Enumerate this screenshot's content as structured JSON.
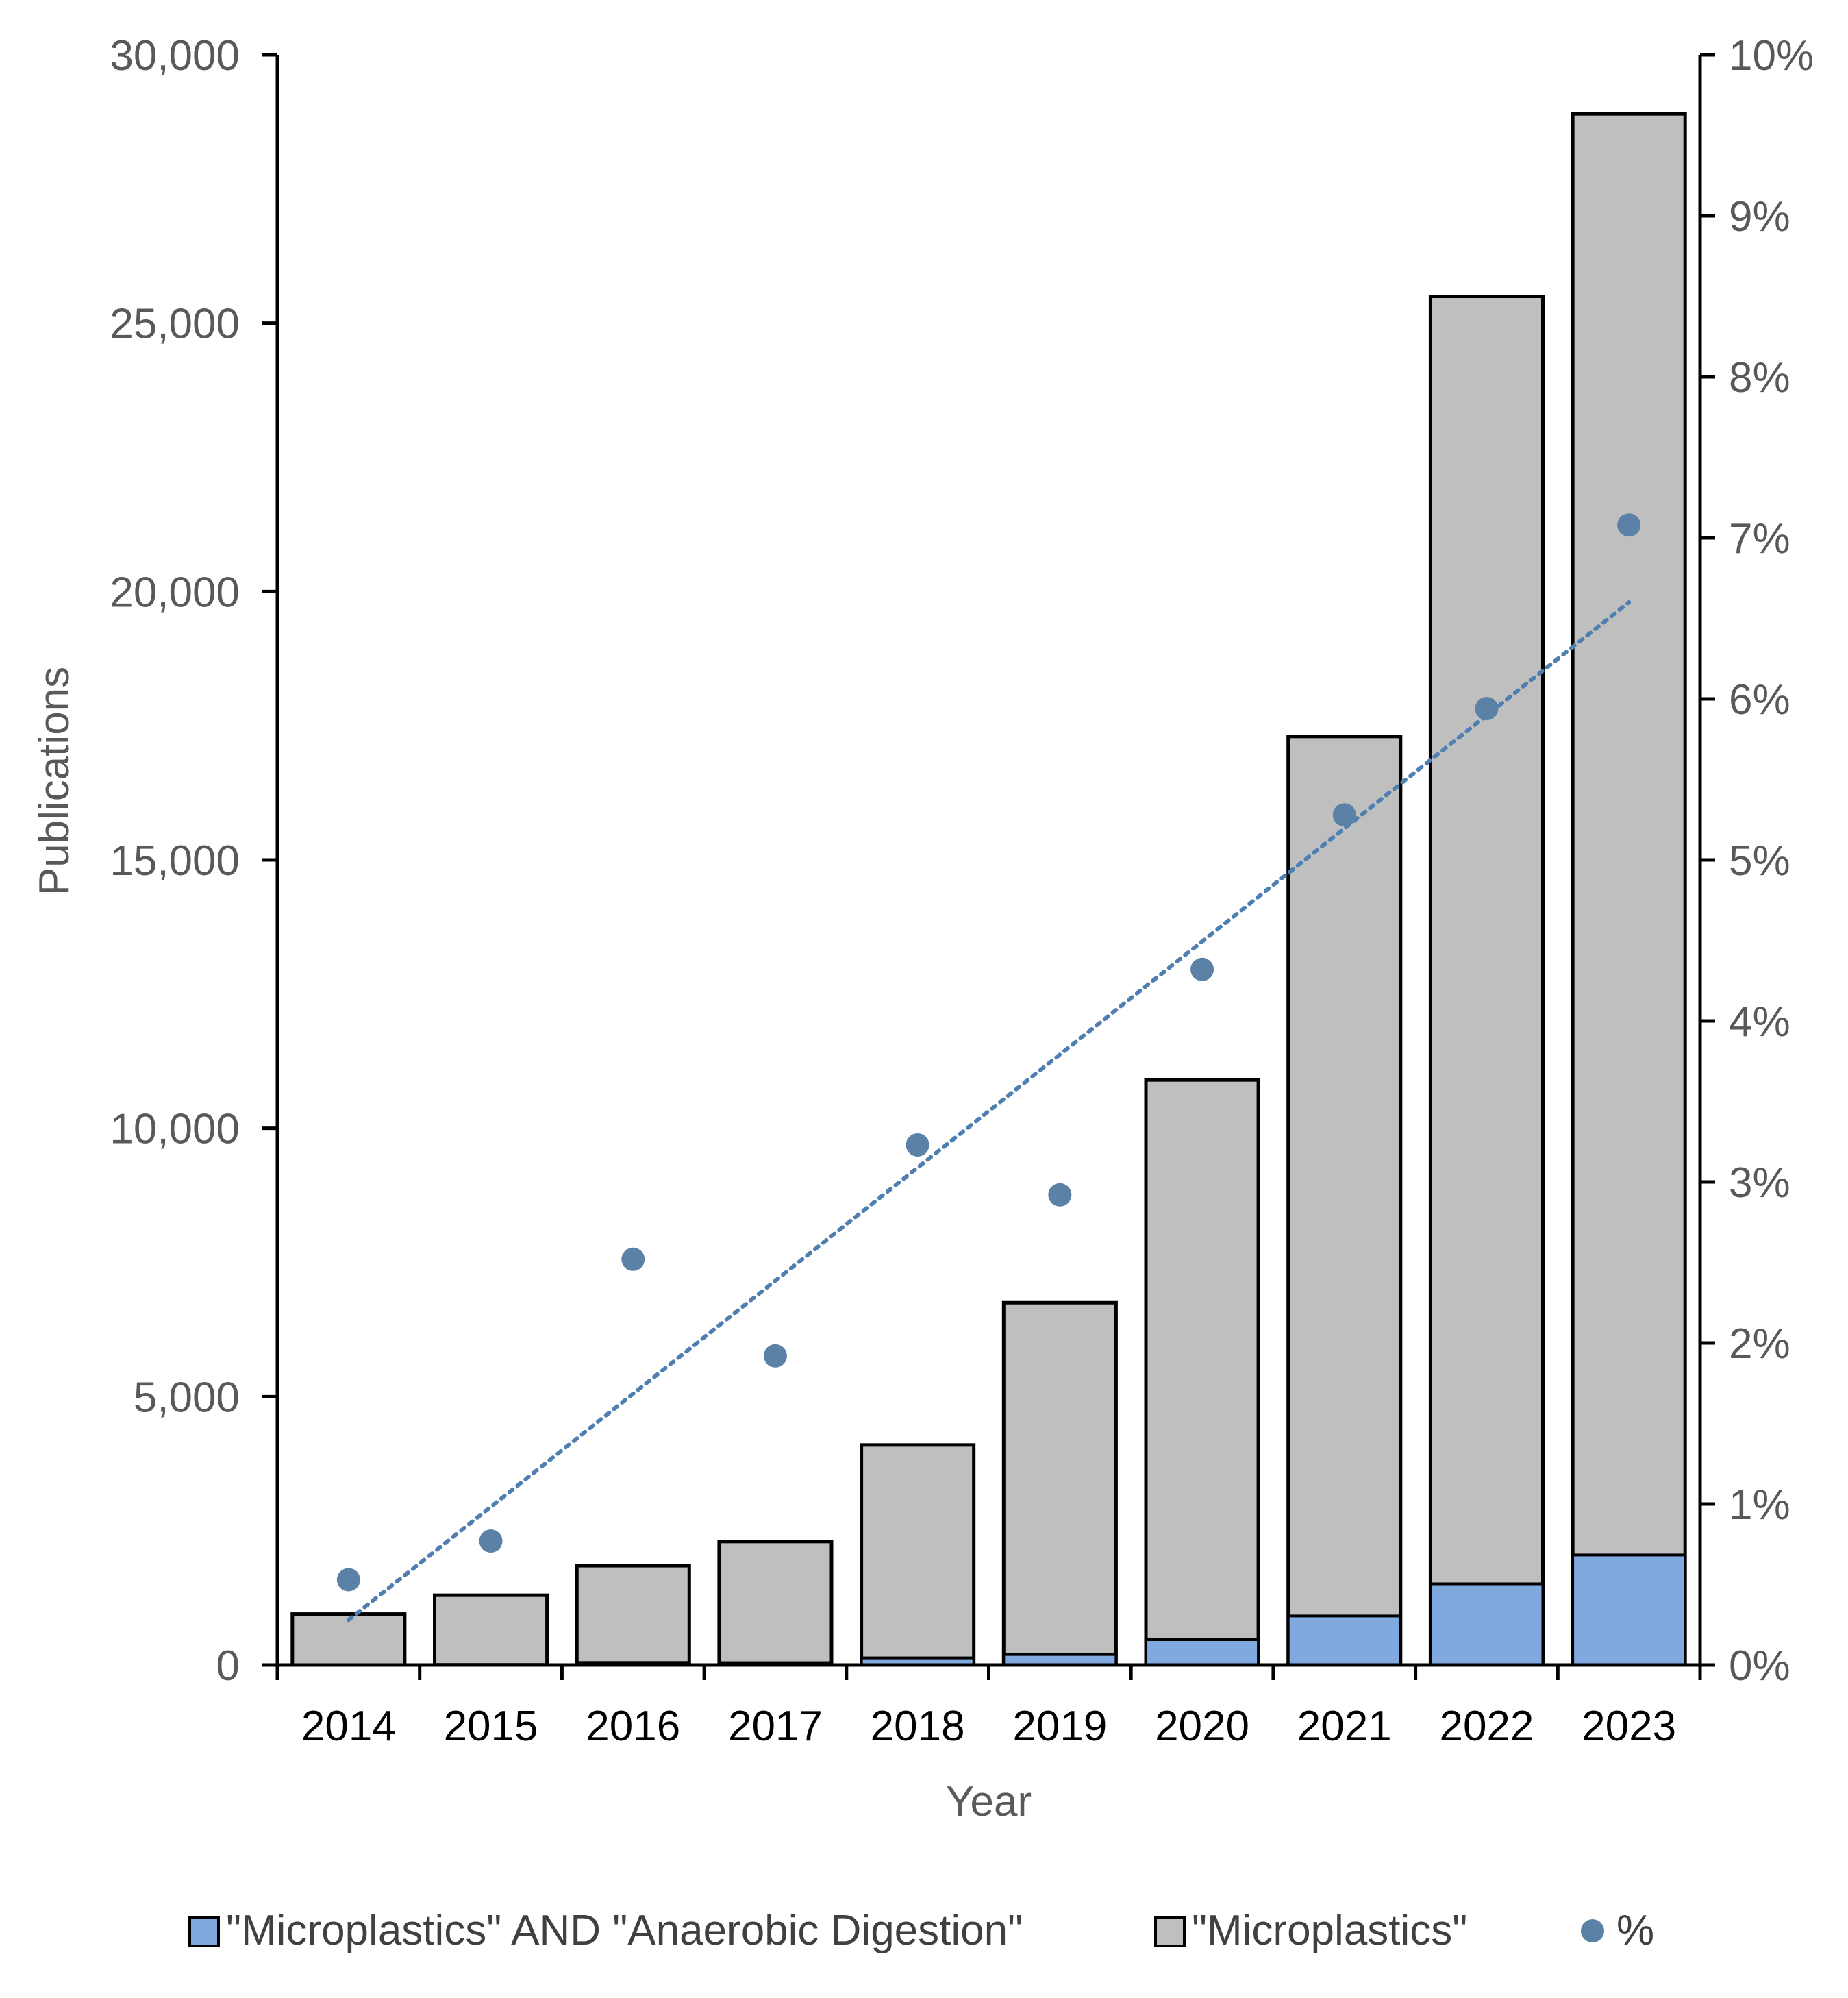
{
  "chart_data": {
    "type": "bar",
    "stacked": "overlay",
    "title": "",
    "xlabel": "Year",
    "ylabel": "Publications",
    "ylim": [
      0,
      30000
    ],
    "y2lim": [
      0,
      10
    ],
    "categories": [
      "2014",
      "2015",
      "2016",
      "2017",
      "2018",
      "2019",
      "2020",
      "2021",
      "2022",
      "2023"
    ],
    "y_ticks": [
      0,
      5000,
      10000,
      15000,
      20000,
      25000,
      30000
    ],
    "y_tick_labels": [
      "0",
      "5,000",
      "10,000",
      "15,000",
      "20,000",
      "25,000",
      "30,000"
    ],
    "y2_ticks": [
      0,
      1,
      2,
      3,
      4,
      5,
      6,
      7,
      8,
      9,
      10
    ],
    "y2_tick_labels": [
      "0%",
      "1%",
      "2%",
      "3%",
      "4%",
      "5%",
      "6%",
      "7%",
      "8%",
      "9%",
      "10%"
    ],
    "series": [
      {
        "name": "\"Microplastics\"",
        "type": "bar",
        "axis": "left",
        "color": "#bfbfbf",
        "values": [
          950,
          1300,
          1850,
          2300,
          4100,
          6750,
          10900,
          17300,
          25500,
          28900
        ]
      },
      {
        "name": "\"Microplastics\" AND \"Anaerobic Digestion\"",
        "type": "bar",
        "axis": "left",
        "color": "#7fa9df",
        "values": [
          5,
          10,
          47,
          44,
          133,
          196,
          472,
          914,
          1513,
          2050
        ]
      },
      {
        "name": "%",
        "type": "scatter",
        "axis": "right",
        "color": "#5b82a6",
        "values": [
          0.53,
          0.77,
          2.52,
          1.92,
          3.23,
          2.92,
          4.32,
          5.28,
          5.94,
          7.08
        ]
      }
    ],
    "trendline": {
      "series": "%",
      "type": "linear",
      "style": "dotted",
      "color": "#4f7fb0",
      "start": 0.28,
      "end": 6.6
    },
    "legend": {
      "position": "bottom",
      "entries": [
        "\"Microplastics\" AND \"Anaerobic Digestion\"",
        "\"Microplastics\"",
        "%"
      ]
    }
  }
}
